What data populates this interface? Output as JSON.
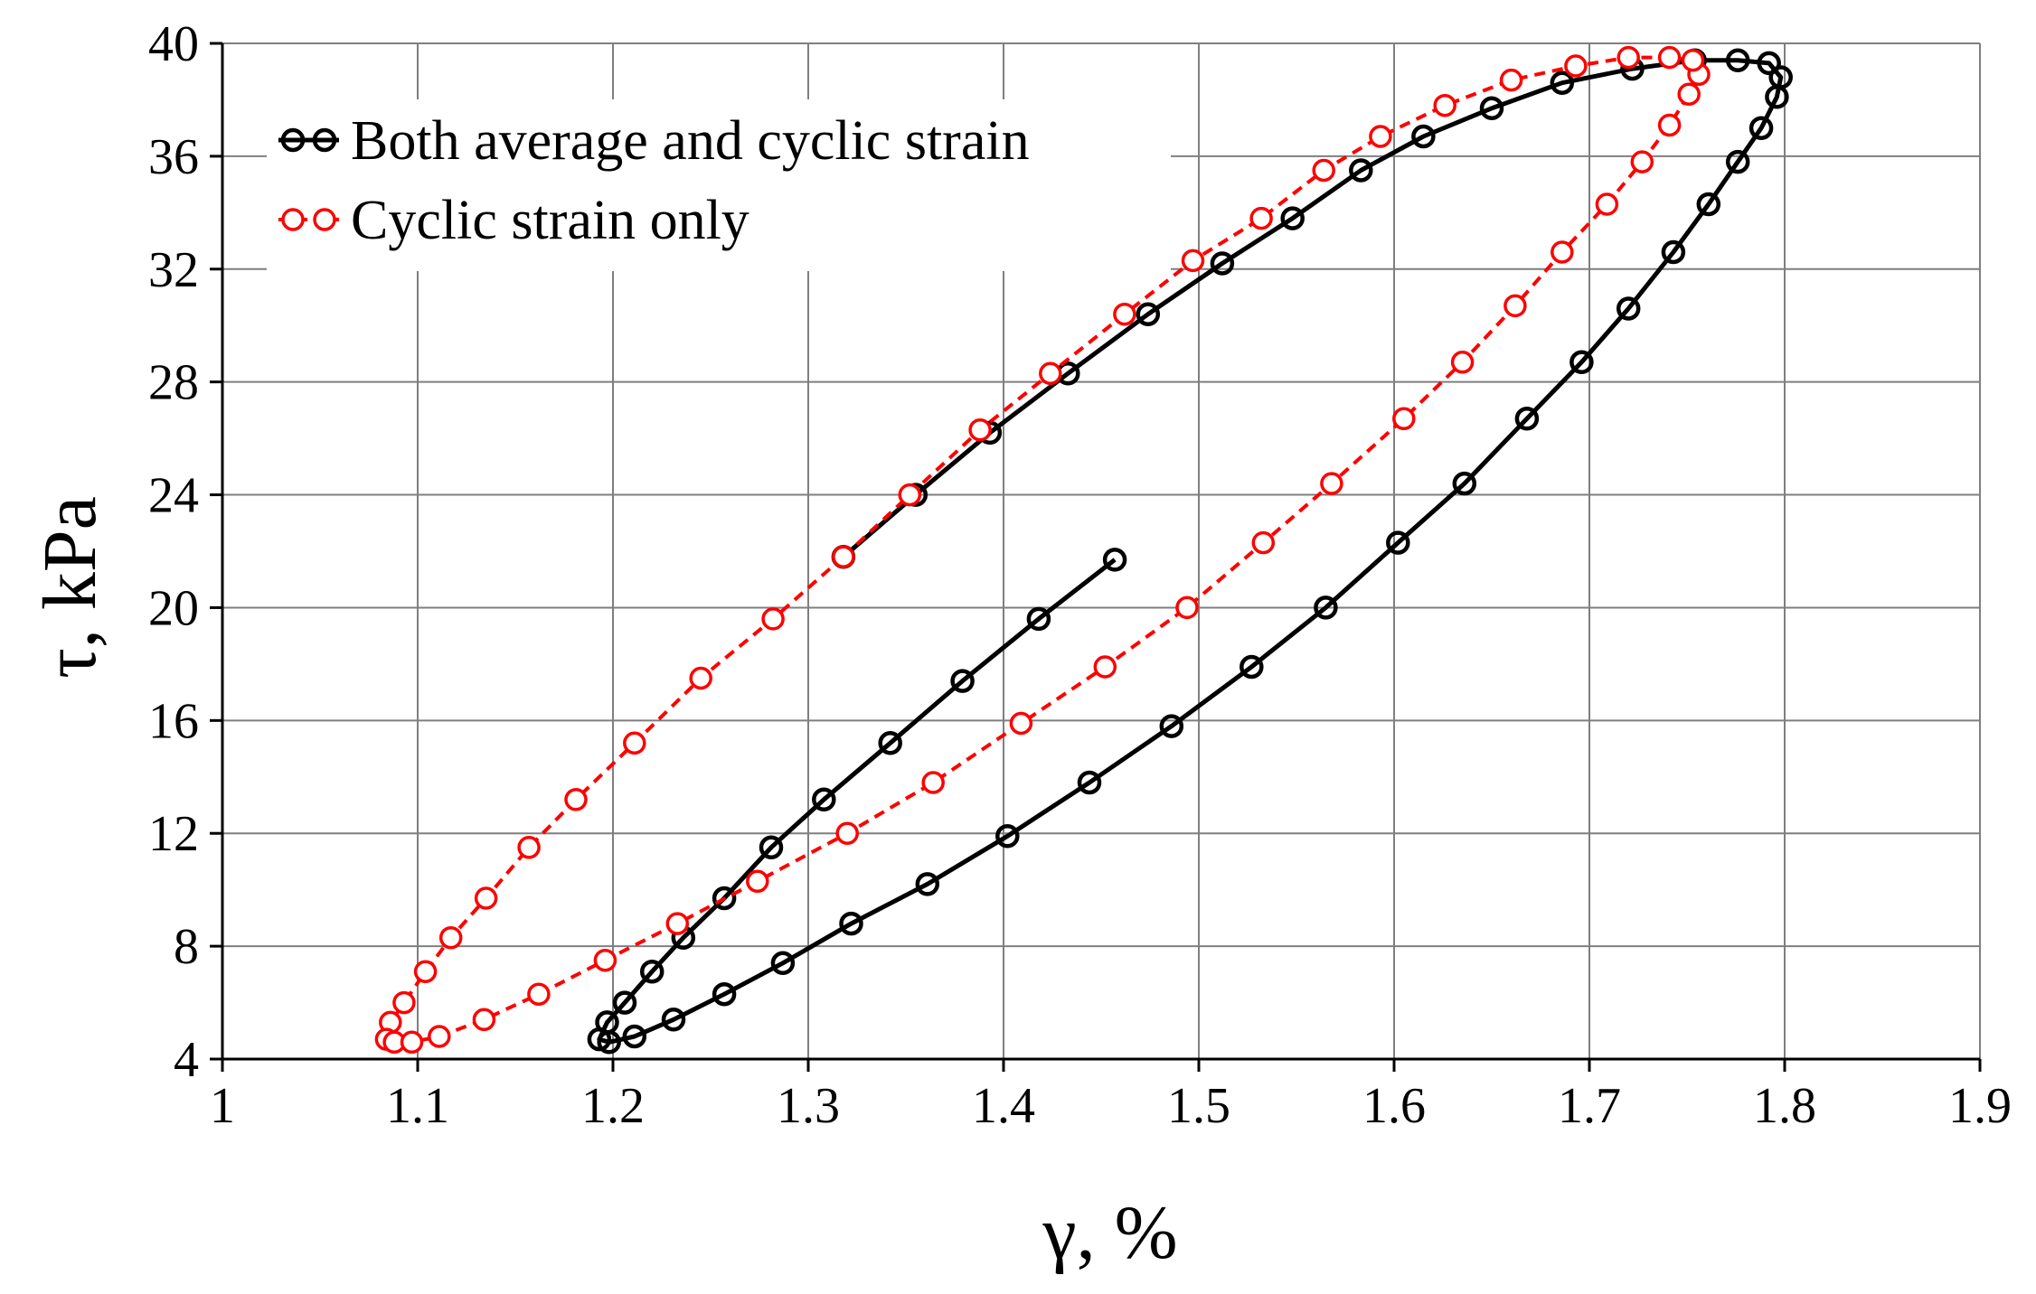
{
  "chart_data": {
    "type": "line",
    "title": "",
    "xlabel": "γ, %",
    "ylabel": "τ, kPa",
    "xlim": [
      1,
      1.9
    ],
    "ylim": [
      4,
      40
    ],
    "xticks": [
      1,
      1.1,
      1.2,
      1.3,
      1.4,
      1.5,
      1.6,
      1.7,
      1.8,
      1.9
    ],
    "xtick_labels": [
      "1",
      "1.1",
      "1.2",
      "1.3",
      "1.4",
      "1.5",
      "1.6",
      "1.7",
      "1.8",
      "1.9"
    ],
    "yticks": [
      4,
      8,
      12,
      16,
      20,
      24,
      28,
      32,
      36,
      40
    ],
    "ytick_labels": [
      "4",
      "8",
      "12",
      "16",
      "20",
      "24",
      "28",
      "32",
      "36",
      "40"
    ],
    "grid": true,
    "legend_position": "top-left",
    "series": [
      {
        "name": "Both average and cyclic strain",
        "color": "#000000",
        "line_style": "solid",
        "marker": "open-circle",
        "points": [
          [
            1.457,
            21.7
          ],
          [
            1.418,
            19.6
          ],
          [
            1.379,
            17.4
          ],
          [
            1.342,
            15.2
          ],
          [
            1.308,
            13.2
          ],
          [
            1.281,
            11.5
          ],
          [
            1.257,
            9.7
          ],
          [
            1.236,
            8.3
          ],
          [
            1.22,
            7.1
          ],
          [
            1.206,
            6.0
          ],
          [
            1.197,
            5.3
          ],
          [
            1.193,
            4.7
          ],
          [
            1.198,
            4.6
          ],
          [
            1.211,
            4.8
          ],
          [
            1.231,
            5.4
          ],
          [
            1.257,
            6.3
          ],
          [
            1.287,
            7.4
          ],
          [
            1.322,
            8.8
          ],
          [
            1.361,
            10.2
          ],
          [
            1.402,
            11.9
          ],
          [
            1.444,
            13.8
          ],
          [
            1.486,
            15.8
          ],
          [
            1.527,
            17.9
          ],
          [
            1.565,
            20.0
          ],
          [
            1.602,
            22.3
          ],
          [
            1.636,
            24.4
          ],
          [
            1.668,
            26.7
          ],
          [
            1.696,
            28.7
          ],
          [
            1.72,
            30.6
          ],
          [
            1.743,
            32.6
          ],
          [
            1.761,
            34.3
          ],
          [
            1.776,
            35.8
          ],
          [
            1.788,
            37.0
          ],
          [
            1.796,
            38.1
          ],
          [
            1.798,
            38.8
          ],
          [
            1.792,
            39.3
          ],
          [
            1.776,
            39.4
          ],
          [
            1.754,
            39.4
          ],
          [
            1.722,
            39.1
          ],
          [
            1.686,
            38.6
          ],
          [
            1.65,
            37.7
          ],
          [
            1.615,
            36.7
          ],
          [
            1.583,
            35.5
          ],
          [
            1.548,
            33.8
          ],
          [
            1.512,
            32.2
          ],
          [
            1.474,
            30.4
          ],
          [
            1.433,
            28.3
          ],
          [
            1.393,
            26.2
          ],
          [
            1.355,
            24.0
          ],
          [
            1.318,
            21.8
          ]
        ]
      },
      {
        "name": "Cyclic strain only",
        "color": "#ff0000",
        "line_style": "dashed",
        "marker": "open-circle",
        "points": [
          [
            1.318,
            21.8
          ],
          [
            1.282,
            19.6
          ],
          [
            1.245,
            17.5
          ],
          [
            1.211,
            15.2
          ],
          [
            1.181,
            13.2
          ],
          [
            1.157,
            11.5
          ],
          [
            1.135,
            9.7
          ],
          [
            1.117,
            8.3
          ],
          [
            1.104,
            7.1
          ],
          [
            1.093,
            6.0
          ],
          [
            1.086,
            5.3
          ],
          [
            1.084,
            4.7
          ],
          [
            1.088,
            4.6
          ],
          [
            1.097,
            4.6
          ],
          [
            1.111,
            4.8
          ],
          [
            1.134,
            5.4
          ],
          [
            1.162,
            6.3
          ],
          [
            1.196,
            7.5
          ],
          [
            1.233,
            8.8
          ],
          [
            1.274,
            10.3
          ],
          [
            1.32,
            12.0
          ],
          [
            1.364,
            13.8
          ],
          [
            1.409,
            15.9
          ],
          [
            1.452,
            17.9
          ],
          [
            1.494,
            20.0
          ],
          [
            1.533,
            22.3
          ],
          [
            1.568,
            24.4
          ],
          [
            1.605,
            26.7
          ],
          [
            1.635,
            28.7
          ],
          [
            1.662,
            30.7
          ],
          [
            1.686,
            32.6
          ],
          [
            1.709,
            34.3
          ],
          [
            1.727,
            35.8
          ],
          [
            1.741,
            37.1
          ],
          [
            1.751,
            38.2
          ],
          [
            1.756,
            38.9
          ],
          [
            1.753,
            39.4
          ],
          [
            1.741,
            39.5
          ],
          [
            1.72,
            39.5
          ],
          [
            1.693,
            39.2
          ],
          [
            1.66,
            38.7
          ],
          [
            1.626,
            37.8
          ],
          [
            1.593,
            36.7
          ],
          [
            1.564,
            35.5
          ],
          [
            1.532,
            33.8
          ],
          [
            1.497,
            32.3
          ],
          [
            1.462,
            30.4
          ],
          [
            1.424,
            28.3
          ],
          [
            1.388,
            26.3
          ],
          [
            1.352,
            24.0
          ],
          [
            1.318,
            21.8
          ]
        ]
      }
    ]
  }
}
